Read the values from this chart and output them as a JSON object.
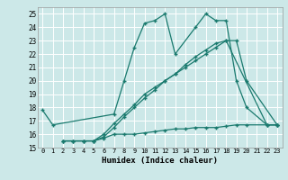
{
  "xlabel": "Humidex (Indice chaleur)",
  "xlim": [
    -0.5,
    23.5
  ],
  "ylim": [
    15,
    25.5
  ],
  "yticks": [
    15,
    16,
    17,
    18,
    19,
    20,
    21,
    22,
    23,
    24,
    25
  ],
  "xticks": [
    0,
    1,
    2,
    3,
    4,
    5,
    6,
    7,
    8,
    9,
    10,
    11,
    12,
    13,
    14,
    15,
    16,
    17,
    18,
    19,
    20,
    21,
    22,
    23
  ],
  "bg_color": "#cce8e8",
  "grid_color": "#ffffff",
  "line_color": "#1a7a6e",
  "line1_x": [
    2,
    3,
    4,
    5,
    6,
    7,
    8,
    9,
    10,
    11,
    12,
    13,
    14,
    15,
    16,
    17,
    18,
    19,
    20,
    22,
    23
  ],
  "line1_y": [
    15.5,
    15.5,
    15.5,
    15.5,
    15.7,
    16.0,
    16.0,
    16.0,
    16.1,
    16.2,
    16.3,
    16.4,
    16.4,
    16.5,
    16.5,
    16.5,
    16.6,
    16.7,
    16.7,
    16.7,
    16.7
  ],
  "line2_x": [
    2,
    3,
    4,
    5,
    6,
    7,
    8,
    9,
    10,
    11,
    12,
    13,
    14,
    15,
    16,
    17,
    18,
    22,
    23
  ],
  "line2_y": [
    15.5,
    15.5,
    15.5,
    15.5,
    15.8,
    16.5,
    17.3,
    18.0,
    18.7,
    19.3,
    20.0,
    20.5,
    21.2,
    21.8,
    22.3,
    22.8,
    23.0,
    16.7,
    16.7
  ],
  "line3_x": [
    0,
    1,
    7,
    8,
    9,
    10,
    11,
    12,
    13,
    15,
    16,
    17,
    18,
    19,
    20,
    22,
    23
  ],
  "line3_y": [
    17.8,
    16.7,
    17.5,
    20.0,
    22.5,
    24.3,
    24.5,
    25.0,
    22.0,
    24.0,
    25.0,
    24.5,
    24.5,
    20.0,
    18.0,
    16.7,
    16.7
  ],
  "line4_x": [
    2,
    3,
    4,
    5,
    6,
    7,
    8,
    9,
    10,
    11,
    12,
    13,
    14,
    15,
    16,
    17,
    18,
    19,
    20,
    23
  ],
  "line4_y": [
    15.5,
    15.5,
    15.5,
    15.5,
    16.0,
    16.8,
    17.5,
    18.2,
    19.0,
    19.5,
    20.0,
    20.5,
    21.0,
    21.5,
    22.0,
    22.5,
    23.0,
    23.0,
    20.0,
    16.7
  ]
}
